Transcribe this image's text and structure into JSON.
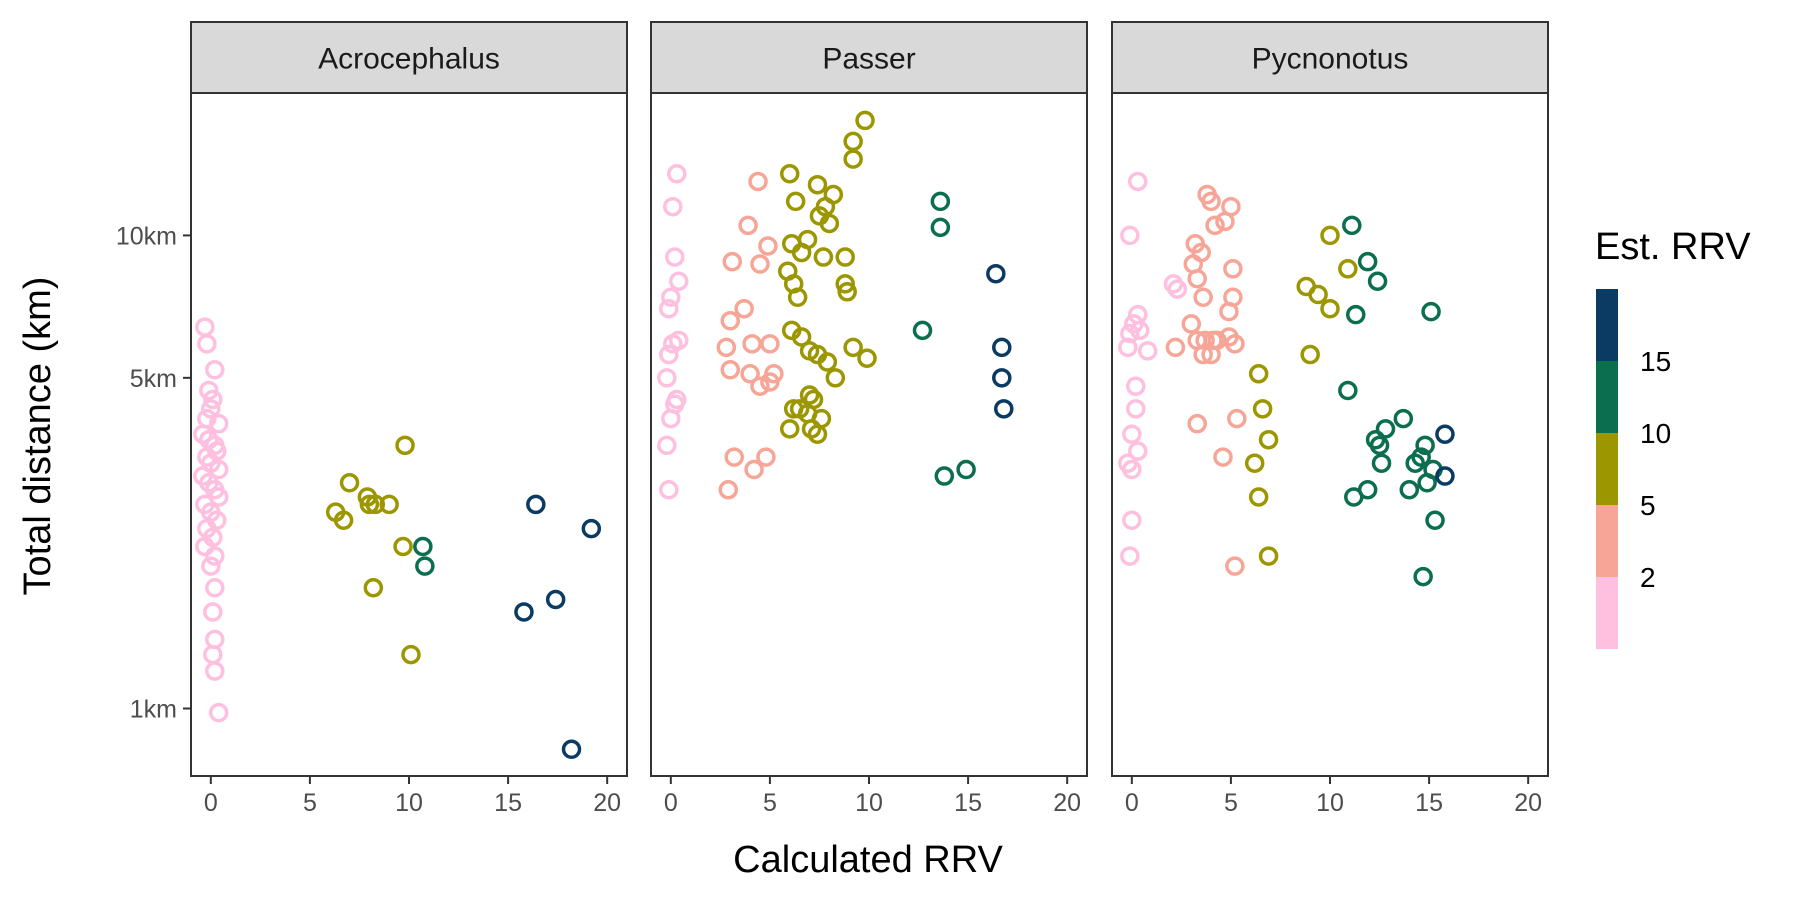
{
  "chart_data": {
    "type": "scatter",
    "layout": "faceted",
    "xlabel": "Calculated RRV",
    "ylabel": "Total distance (km)",
    "xlim": [
      -1,
      21
    ],
    "xticks": [
      0,
      5,
      10,
      15,
      20
    ],
    "y_scale": "log",
    "ylim": [
      0.72,
      20.0
    ],
    "yticks": [
      1,
      5,
      10
    ],
    "ytick_labels": [
      "1km",
      "5km",
      "10km"
    ],
    "grid": false,
    "legend": {
      "title": "Est. RRV",
      "type": "binned color scale",
      "position": "right",
      "bins": [
        {
          "label": "2",
          "color": "#FFBFDF"
        },
        {
          "label": "5",
          "color": "#F6A597"
        },
        {
          "label": "10",
          "color": "#9C9600"
        },
        {
          "label": "15",
          "color": "#0B6E4F"
        },
        {
          "label": "",
          "color": "#0B3A63"
        }
      ],
      "labels": [
        "2",
        "5",
        "10",
        "15"
      ]
    },
    "facets": [
      {
        "label": "Acrocephalus",
        "points": [
          [
            -0.3,
            6.4,
            1
          ],
          [
            -0.2,
            5.9,
            1
          ],
          [
            0.2,
            5.2,
            1
          ],
          [
            -0.1,
            4.7,
            1
          ],
          [
            0.1,
            4.5,
            1
          ],
          [
            0.0,
            4.3,
            1
          ],
          [
            -0.2,
            4.1,
            1
          ],
          [
            0.4,
            4.0,
            1
          ],
          [
            -0.4,
            3.8,
            1
          ],
          [
            -0.1,
            3.7,
            1
          ],
          [
            0.2,
            3.6,
            1
          ],
          [
            0.3,
            3.5,
            1
          ],
          [
            -0.2,
            3.4,
            1
          ],
          [
            0.0,
            3.3,
            1
          ],
          [
            0.4,
            3.2,
            1
          ],
          [
            -0.4,
            3.1,
            1
          ],
          [
            -0.1,
            3.0,
            1
          ],
          [
            0.2,
            2.9,
            1
          ],
          [
            0.4,
            2.8,
            1
          ],
          [
            -0.3,
            2.7,
            1
          ],
          [
            0.0,
            2.6,
            1
          ],
          [
            0.3,
            2.5,
            1
          ],
          [
            -0.2,
            2.4,
            1
          ],
          [
            0.1,
            2.3,
            1
          ],
          [
            -0.3,
            2.2,
            1
          ],
          [
            0.2,
            2.1,
            1
          ],
          [
            0.0,
            2.0,
            1
          ],
          [
            0.2,
            1.8,
            1
          ],
          [
            0.1,
            1.6,
            1
          ],
          [
            0.2,
            1.4,
            1
          ],
          [
            0.1,
            1.3,
            1
          ],
          [
            0.2,
            1.2,
            1
          ],
          [
            0.4,
            0.98,
            1
          ],
          [
            6.3,
            2.6,
            3
          ],
          [
            6.7,
            2.5,
            3
          ],
          [
            7.0,
            3.0,
            3
          ],
          [
            7.9,
            2.8,
            3
          ],
          [
            8.0,
            2.7,
            3
          ],
          [
            8.3,
            2.7,
            3
          ],
          [
            9.0,
            2.7,
            3
          ],
          [
            9.7,
            2.2,
            3
          ],
          [
            9.8,
            3.6,
            3
          ],
          [
            8.2,
            1.8,
            3
          ],
          [
            10.1,
            1.3,
            3
          ],
          [
            10.7,
            2.2,
            4
          ],
          [
            10.8,
            2.0,
            4
          ],
          [
            16.4,
            2.7,
            5
          ],
          [
            19.2,
            2.4,
            5
          ],
          [
            15.8,
            1.6,
            5
          ],
          [
            17.4,
            1.7,
            5
          ],
          [
            18.2,
            0.82,
            5
          ]
        ]
      },
      {
        "label": "Passer",
        "points": [
          [
            0.3,
            13.5,
            1
          ],
          [
            0.1,
            11.5,
            1
          ],
          [
            0.2,
            9.0,
            1
          ],
          [
            0.4,
            8.0,
            1
          ],
          [
            0.0,
            7.4,
            1
          ],
          [
            -0.1,
            7.0,
            1
          ],
          [
            0.4,
            6.0,
            1
          ],
          [
            0.1,
            5.9,
            1
          ],
          [
            -0.1,
            5.6,
            1
          ],
          [
            -0.2,
            5.0,
            1
          ],
          [
            0.3,
            4.5,
            1
          ],
          [
            0.2,
            4.4,
            1
          ],
          [
            0.0,
            4.1,
            1
          ],
          [
            -0.2,
            3.6,
            1
          ],
          [
            -0.1,
            2.9,
            1
          ],
          [
            4.4,
            13.0,
            2
          ],
          [
            3.9,
            10.5,
            2
          ],
          [
            4.9,
            9.5,
            2
          ],
          [
            3.1,
            8.8,
            2
          ],
          [
            4.5,
            8.7,
            2
          ],
          [
            3.7,
            7.0,
            2
          ],
          [
            3.0,
            6.6,
            2
          ],
          [
            4.1,
            5.9,
            2
          ],
          [
            5.0,
            5.9,
            2
          ],
          [
            2.8,
            5.8,
            2
          ],
          [
            3.0,
            5.2,
            2
          ],
          [
            4.0,
            5.1,
            2
          ],
          [
            5.2,
            5.1,
            2
          ],
          [
            4.5,
            4.8,
            2
          ],
          [
            5.0,
            4.9,
            2
          ],
          [
            3.2,
            3.4,
            2
          ],
          [
            4.8,
            3.4,
            2
          ],
          [
            4.2,
            3.2,
            2
          ],
          [
            2.9,
            2.9,
            2
          ],
          [
            6.0,
            13.5,
            3
          ],
          [
            7.4,
            12.8,
            3
          ],
          [
            8.2,
            12.2,
            3
          ],
          [
            6.3,
            11.8,
            3
          ],
          [
            7.8,
            11.5,
            3
          ],
          [
            7.5,
            11.0,
            3
          ],
          [
            8.0,
            10.6,
            3
          ],
          [
            6.1,
            9.6,
            3
          ],
          [
            6.9,
            9.8,
            3
          ],
          [
            6.6,
            9.2,
            3
          ],
          [
            7.7,
            9.0,
            3
          ],
          [
            8.8,
            9.0,
            3
          ],
          [
            5.9,
            8.4,
            3
          ],
          [
            6.2,
            7.9,
            3
          ],
          [
            6.4,
            7.4,
            3
          ],
          [
            8.8,
            7.9,
            3
          ],
          [
            8.9,
            7.6,
            3
          ],
          [
            6.1,
            6.3,
            3
          ],
          [
            6.6,
            6.1,
            3
          ],
          [
            7.0,
            5.7,
            3
          ],
          [
            7.4,
            5.6,
            3
          ],
          [
            7.9,
            5.4,
            3
          ],
          [
            9.2,
            5.8,
            3
          ],
          [
            9.9,
            5.5,
            3
          ],
          [
            8.3,
            5.0,
            3
          ],
          [
            7.0,
            4.6,
            3
          ],
          [
            7.2,
            4.5,
            3
          ],
          [
            6.2,
            4.3,
            3
          ],
          [
            6.5,
            4.3,
            3
          ],
          [
            6.9,
            4.2,
            3
          ],
          [
            7.6,
            4.1,
            3
          ],
          [
            7.1,
            3.9,
            3
          ],
          [
            6.0,
            3.9,
            3
          ],
          [
            7.4,
            3.8,
            3
          ],
          [
            9.8,
            17.5,
            3
          ],
          [
            9.2,
            15.8,
            3
          ],
          [
            9.2,
            14.5,
            3
          ],
          [
            13.6,
            11.8,
            4
          ],
          [
            13.6,
            10.4,
            4
          ],
          [
            12.7,
            6.3,
            4
          ],
          [
            13.8,
            3.1,
            4
          ],
          [
            14.9,
            3.2,
            4
          ],
          [
            16.4,
            8.3,
            5
          ],
          [
            16.7,
            5.8,
            5
          ],
          [
            16.7,
            5.0,
            5
          ],
          [
            16.8,
            4.3,
            5
          ]
        ]
      },
      {
        "label": "Pycnonotus",
        "points": [
          [
            0.3,
            13.0,
            1
          ],
          [
            -0.1,
            10.0,
            1
          ],
          [
            0.3,
            6.8,
            1
          ],
          [
            0.1,
            6.5,
            1
          ],
          [
            0.4,
            6.3,
            1
          ],
          [
            -0.1,
            6.2,
            1
          ],
          [
            -0.2,
            5.8,
            1
          ],
          [
            0.8,
            5.7,
            1
          ],
          [
            2.1,
            7.9,
            1
          ],
          [
            2.3,
            7.7,
            1
          ],
          [
            0.2,
            4.8,
            1
          ],
          [
            0.2,
            4.3,
            1
          ],
          [
            0.0,
            3.8,
            1
          ],
          [
            0.3,
            3.5,
            1
          ],
          [
            -0.2,
            3.3,
            1
          ],
          [
            0.0,
            3.2,
            1
          ],
          [
            0.0,
            2.5,
            1
          ],
          [
            -0.1,
            2.1,
            1
          ],
          [
            3.8,
            12.2,
            2
          ],
          [
            4.0,
            11.8,
            2
          ],
          [
            4.2,
            10.5,
            2
          ],
          [
            4.7,
            10.7,
            2
          ],
          [
            5.0,
            11.5,
            2
          ],
          [
            3.2,
            9.6,
            2
          ],
          [
            3.5,
            9.2,
            2
          ],
          [
            3.1,
            8.7,
            2
          ],
          [
            3.3,
            8.1,
            2
          ],
          [
            5.1,
            8.5,
            2
          ],
          [
            3.6,
            7.4,
            2
          ],
          [
            5.1,
            7.4,
            2
          ],
          [
            4.9,
            6.9,
            2
          ],
          [
            3.0,
            6.5,
            2
          ],
          [
            3.3,
            6.0,
            2
          ],
          [
            3.7,
            6.0,
            2
          ],
          [
            4.1,
            6.0,
            2
          ],
          [
            4.3,
            6.0,
            2
          ],
          [
            4.9,
            6.1,
            2
          ],
          [
            5.2,
            5.9,
            2
          ],
          [
            3.6,
            5.6,
            2
          ],
          [
            4.0,
            5.6,
            2
          ],
          [
            2.2,
            5.8,
            2
          ],
          [
            3.3,
            4.0,
            2
          ],
          [
            5.3,
            4.1,
            2
          ],
          [
            4.6,
            3.4,
            2
          ],
          [
            5.2,
            2.0,
            2
          ],
          [
            10.0,
            10.0,
            3
          ],
          [
            10.9,
            8.5,
            3
          ],
          [
            8.8,
            7.8,
            3
          ],
          [
            9.4,
            7.5,
            3
          ],
          [
            10.0,
            7.0,
            3
          ],
          [
            9.0,
            5.6,
            3
          ],
          [
            6.4,
            5.1,
            3
          ],
          [
            6.6,
            4.3,
            3
          ],
          [
            6.9,
            3.7,
            3
          ],
          [
            6.2,
            3.3,
            3
          ],
          [
            6.4,
            2.8,
            3
          ],
          [
            6.9,
            2.1,
            3
          ],
          [
            11.1,
            10.5,
            4
          ],
          [
            11.9,
            8.8,
            4
          ],
          [
            12.4,
            8.0,
            4
          ],
          [
            11.3,
            6.8,
            4
          ],
          [
            15.1,
            6.9,
            4
          ],
          [
            10.9,
            4.7,
            4
          ],
          [
            12.3,
            3.7,
            4
          ],
          [
            12.5,
            3.6,
            4
          ],
          [
            12.8,
            3.9,
            4
          ],
          [
            13.7,
            4.1,
            4
          ],
          [
            12.6,
            3.3,
            4
          ],
          [
            14.3,
            3.3,
            4
          ],
          [
            14.6,
            3.4,
            4
          ],
          [
            14.8,
            3.6,
            4
          ],
          [
            15.2,
            3.2,
            4
          ],
          [
            14.9,
            3.0,
            4
          ],
          [
            14.0,
            2.9,
            4
          ],
          [
            11.9,
            2.9,
            4
          ],
          [
            11.2,
            2.8,
            4
          ],
          [
            15.3,
            2.5,
            4
          ],
          [
            14.7,
            1.9,
            4
          ],
          [
            15.8,
            3.8,
            5
          ],
          [
            15.8,
            3.1,
            5
          ]
        ]
      }
    ]
  }
}
